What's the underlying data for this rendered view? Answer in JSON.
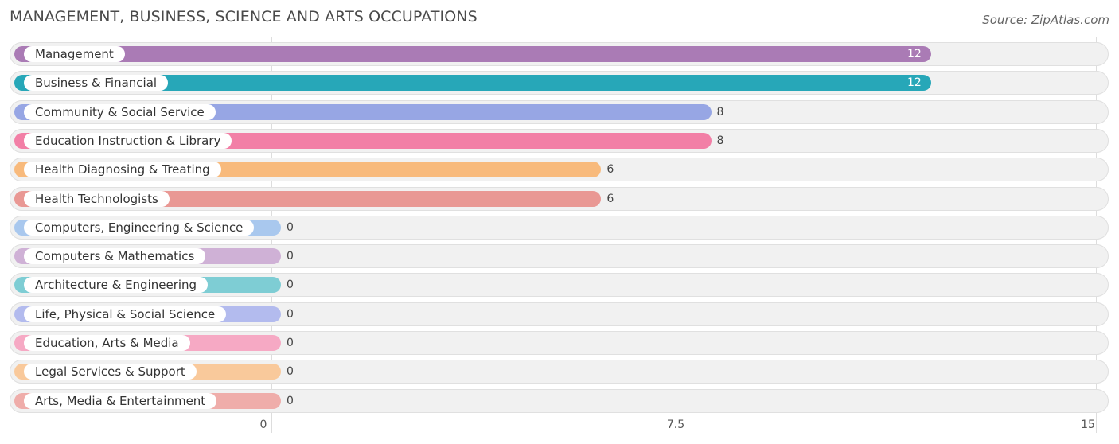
{
  "chart_data": {
    "type": "bar",
    "orientation": "horizontal",
    "title": "MANAGEMENT, BUSINESS, SCIENCE AND ARTS OCCUPATIONS",
    "source": "Source: ZipAtlas.com",
    "xlim": [
      0,
      15
    ],
    "ticks": [
      {
        "value": 0,
        "label": "0"
      },
      {
        "value": 7.5,
        "label": "7.5"
      },
      {
        "value": 15,
        "label": "15"
      }
    ],
    "categories": [
      "Management",
      "Business & Financial",
      "Community & Social Service",
      "Education Instruction & Library",
      "Health Diagnosing & Treating",
      "Health Technologists",
      "Computers, Engineering & Science",
      "Computers & Mathematics",
      "Architecture & Engineering",
      "Life, Physical & Social Science",
      "Education, Arts & Media",
      "Legal Services & Support",
      "Arts, Media & Entertainment"
    ],
    "values": [
      12,
      12,
      8,
      8,
      6,
      6,
      0,
      0,
      0,
      0,
      0,
      0,
      0
    ],
    "value_labels": [
      "12",
      "12",
      "8",
      "8",
      "6",
      "6",
      "0",
      "0",
      "0",
      "0",
      "0",
      "0",
      "0"
    ],
    "colors": [
      "#aa7bb5",
      "#27a7b8",
      "#97a6e4",
      "#f27fa6",
      "#f8ba7c",
      "#e99894",
      "#a9c8ee",
      "#cfb1d6",
      "#7ecdd4",
      "#b3bbee",
      "#f6a9c4",
      "#f9c99b",
      "#efadaa"
    ]
  }
}
